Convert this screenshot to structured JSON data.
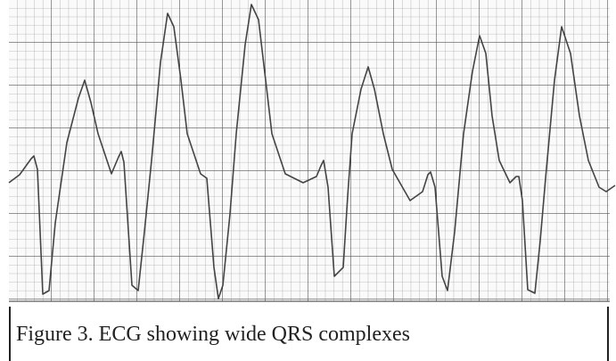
{
  "figure": {
    "caption": "Figure 3. ECG showing wide QRS complexes"
  }
}
